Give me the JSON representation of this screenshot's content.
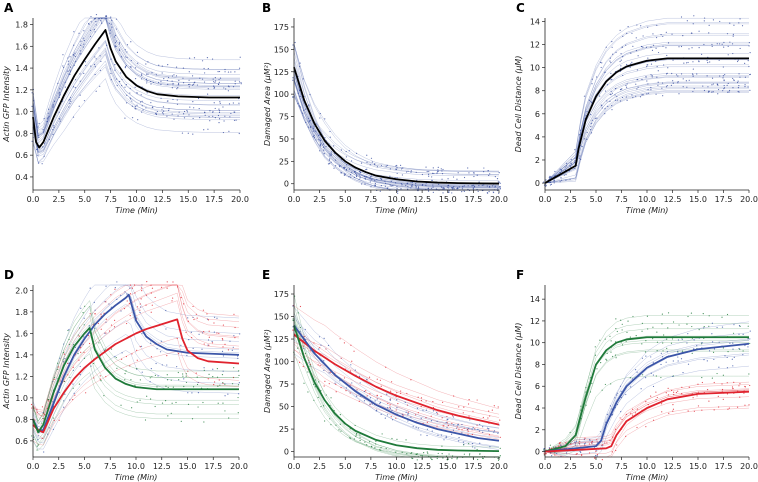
{
  "chart_data": [
    {
      "panel": "A",
      "type": "line",
      "xlabel": "Time (Min)",
      "ylabel": "Actin GFP Intensity",
      "xlim": [
        0,
        20
      ],
      "ylim": [
        0.28,
        1.86
      ],
      "xticks": [
        "0.0",
        "2.5",
        "5.0",
        "7.5",
        "10.0",
        "12.5",
        "15.0",
        "17.5",
        "20.0"
      ],
      "yticks": [
        "0.4",
        "0.6",
        "0.8",
        "1.0",
        "1.2",
        "1.4",
        "1.6",
        "1.8"
      ],
      "series": [
        {
          "color": "#000000",
          "x": [
            0,
            0.3,
            0.6,
            1,
            2,
            3,
            4,
            5,
            6,
            7,
            7.5,
            8,
            9,
            10,
            11,
            12,
            14,
            17,
            20
          ],
          "y": [
            0.95,
            0.72,
            0.67,
            0.72,
            0.95,
            1.15,
            1.33,
            1.48,
            1.62,
            1.75,
            1.58,
            1.46,
            1.32,
            1.24,
            1.19,
            1.16,
            1.14,
            1.13,
            1.13
          ]
        }
      ],
      "background_color": "#3a4fa0"
    },
    {
      "panel": "B",
      "type": "line",
      "xlabel": "Time (Min)",
      "ylabel": "Damaged Area (μM²)",
      "xlim": [
        0,
        20
      ],
      "ylim": [
        -7,
        185
      ],
      "xticks": [
        "0.0",
        "2.5",
        "5.0",
        "7.5",
        "10.0",
        "12.5",
        "15.0",
        "17.5",
        "20.0"
      ],
      "yticks": [
        "0",
        "25",
        "50",
        "75",
        "100",
        "125",
        "150",
        "175"
      ],
      "series": [
        {
          "color": "#000000",
          "x": [
            0,
            1,
            2,
            3,
            4,
            5,
            6,
            7,
            8,
            10,
            12,
            14,
            16,
            18,
            20
          ],
          "y": [
            130,
            93,
            67,
            48,
            35,
            25,
            18,
            13,
            9,
            5,
            2.5,
            1.3,
            0.7,
            0.4,
            0.2
          ]
        }
      ],
      "background_color": "#3a4fa0"
    },
    {
      "panel": "C",
      "type": "line",
      "xlabel": "Time (Min)",
      "ylabel": "Dead Cell Distance (μM)",
      "xlim": [
        0,
        20
      ],
      "ylim": [
        -0.6,
        14.3
      ],
      "xticks": [
        "0.0",
        "2.5",
        "5.0",
        "7.5",
        "10.0",
        "12.5",
        "15.0",
        "17.5",
        "20.0"
      ],
      "yticks": [
        "0",
        "2",
        "4",
        "6",
        "8",
        "10",
        "12",
        "14"
      ],
      "series": [
        {
          "color": "#000000",
          "x": [
            0,
            1,
            2,
            3,
            3.3,
            4,
            5,
            6,
            7,
            8,
            10,
            12,
            20
          ],
          "y": [
            0,
            0.5,
            1,
            1.5,
            3,
            5.5,
            7.5,
            8.8,
            9.6,
            10.1,
            10.6,
            10.8,
            10.8
          ]
        }
      ],
      "background_color": "#3a4fa0"
    },
    {
      "panel": "D",
      "type": "line",
      "xlabel": "Time (Min)",
      "ylabel": "Actin GFP Intensity",
      "xlim": [
        0,
        20
      ],
      "ylim": [
        0.45,
        2.05
      ],
      "xticks": [
        "0.0",
        "2.5",
        "5.0",
        "7.5",
        "10.0",
        "12.5",
        "15.0",
        "17.5",
        "20.0"
      ],
      "yticks": [
        "0.6",
        "0.8",
        "1.0",
        "1.2",
        "1.4",
        "1.6",
        "1.8",
        "2.0"
      ],
      "series": [
        {
          "color": "#3b55a8",
          "x": [
            0,
            0.5,
            1,
            2,
            3,
            4,
            5,
            6,
            7,
            8,
            9,
            9.3,
            10,
            11,
            12,
            13,
            15,
            20
          ],
          "y": [
            0.8,
            0.7,
            0.7,
            0.95,
            1.2,
            1.4,
            1.55,
            1.68,
            1.78,
            1.86,
            1.93,
            1.96,
            1.72,
            1.57,
            1.5,
            1.45,
            1.42,
            1.4
          ]
        },
        {
          "color": "#e0232e",
          "x": [
            0,
            0.5,
            1,
            2,
            3,
            4,
            5,
            6,
            7,
            8,
            9,
            10,
            11,
            12,
            13,
            14,
            14.5,
            15,
            16,
            17,
            20
          ],
          "y": [
            0.75,
            0.7,
            0.68,
            0.9,
            1.05,
            1.18,
            1.28,
            1.36,
            1.43,
            1.5,
            1.55,
            1.6,
            1.64,
            1.67,
            1.7,
            1.73,
            1.55,
            1.44,
            1.37,
            1.34,
            1.32
          ]
        },
        {
          "color": "#1f7a3a",
          "x": [
            0,
            0.5,
            1,
            2,
            3,
            4,
            5,
            5.5,
            6,
            7,
            8,
            9,
            10,
            12,
            20
          ],
          "y": [
            0.8,
            0.68,
            0.75,
            1.05,
            1.3,
            1.48,
            1.6,
            1.65,
            1.45,
            1.28,
            1.18,
            1.13,
            1.1,
            1.08,
            1.08
          ]
        }
      ]
    },
    {
      "panel": "E",
      "type": "line",
      "xlabel": "Time (Min)",
      "ylabel": "Damaged Area (μM²)",
      "xlim": [
        0,
        20
      ],
      "ylim": [
        -6,
        185
      ],
      "xticks": [
        "0.0",
        "2.5",
        "5.0",
        "7.5",
        "10.0",
        "12.5",
        "15.0",
        "17.5",
        "20.0"
      ],
      "yticks": [
        "0",
        "25",
        "50",
        "75",
        "100",
        "125",
        "150",
        "175"
      ],
      "series": [
        {
          "color": "#e0232e",
          "x": [
            0,
            2,
            4,
            6,
            8,
            10,
            12,
            14,
            16,
            18,
            20
          ],
          "y": [
            130,
            112,
            97,
            84,
            72,
            62,
            54,
            46,
            40,
            35,
            30
          ]
        },
        {
          "color": "#3b55a8",
          "x": [
            0,
            2,
            4,
            6,
            8,
            10,
            12,
            14,
            16,
            18,
            20
          ],
          "y": [
            140,
            109,
            85,
            67,
            52,
            41,
            32,
            25,
            20,
            15,
            12
          ]
        },
        {
          "color": "#1f7a3a",
          "x": [
            0,
            1,
            2,
            3,
            4,
            5,
            6,
            8,
            10,
            12,
            14,
            16,
            20
          ],
          "y": [
            140,
            104,
            77,
            57,
            42,
            31,
            23,
            13,
            7,
            3.8,
            2,
            1.2,
            0.5
          ]
        }
      ]
    },
    {
      "panel": "F",
      "type": "line",
      "xlabel": "Time (Min)",
      "ylabel": "Dead Cell Distance (μM)",
      "xlim": [
        0,
        20
      ],
      "ylim": [
        -0.5,
        15.3
      ],
      "xticks": [
        "0.0",
        "2.5",
        "5.0",
        "7.5",
        "10.0",
        "12.5",
        "15.0",
        "17.5",
        "20.0"
      ],
      "yticks": [
        "0",
        "2",
        "4",
        "6",
        "8",
        "10",
        "12",
        "14"
      ],
      "series": [
        {
          "color": "#1f7a3a",
          "x": [
            0,
            2,
            3,
            4,
            5,
            6,
            7,
            8,
            10,
            20
          ],
          "y": [
            0,
            0.5,
            1.5,
            5,
            8,
            9.3,
            10,
            10.3,
            10.5,
            10.5
          ]
        },
        {
          "color": "#3b55a8",
          "x": [
            0,
            5,
            5.5,
            6,
            7,
            8,
            10,
            12,
            15,
            20
          ],
          "y": [
            0,
            0.5,
            1,
            2.5,
            4.5,
            6,
            7.7,
            8.7,
            9.4,
            9.9
          ]
        },
        {
          "color": "#e0232e",
          "x": [
            0,
            6,
            6.5,
            7,
            8,
            10,
            12,
            15,
            20
          ],
          "y": [
            0,
            0.3,
            0.5,
            1.5,
            2.8,
            4,
            4.8,
            5.3,
            5.5
          ]
        }
      ]
    }
  ]
}
